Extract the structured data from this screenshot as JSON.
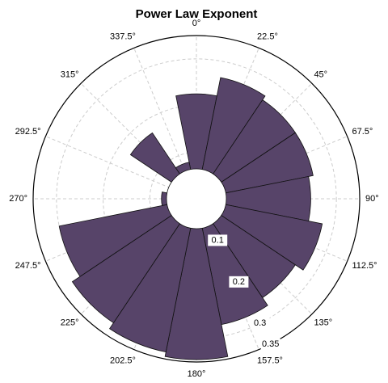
{
  "chart_data": {
    "type": "polar_bar",
    "title": "Power Law Exponent",
    "categories": [
      "0°",
      "22.5°",
      "45°",
      "67.5°",
      "90°",
      "112.5°",
      "135°",
      "157.5°",
      "180°",
      "202.5°",
      "225°",
      "247.5°",
      "270°",
      "292.5°",
      "315°",
      "337.5°"
    ],
    "values": [
      0.225,
      0.265,
      0.255,
      0.255,
      0.245,
      0.275,
      0.255,
      0.275,
      0.345,
      0.335,
      0.32,
      0.3,
      0.075,
      0.06,
      0.17,
      0.08
    ],
    "color": "#574469",
    "ylim": [
      0,
      0.35
    ],
    "yticks": [
      0.1,
      0.2,
      0.3,
      0.35
    ],
    "grid": true
  }
}
